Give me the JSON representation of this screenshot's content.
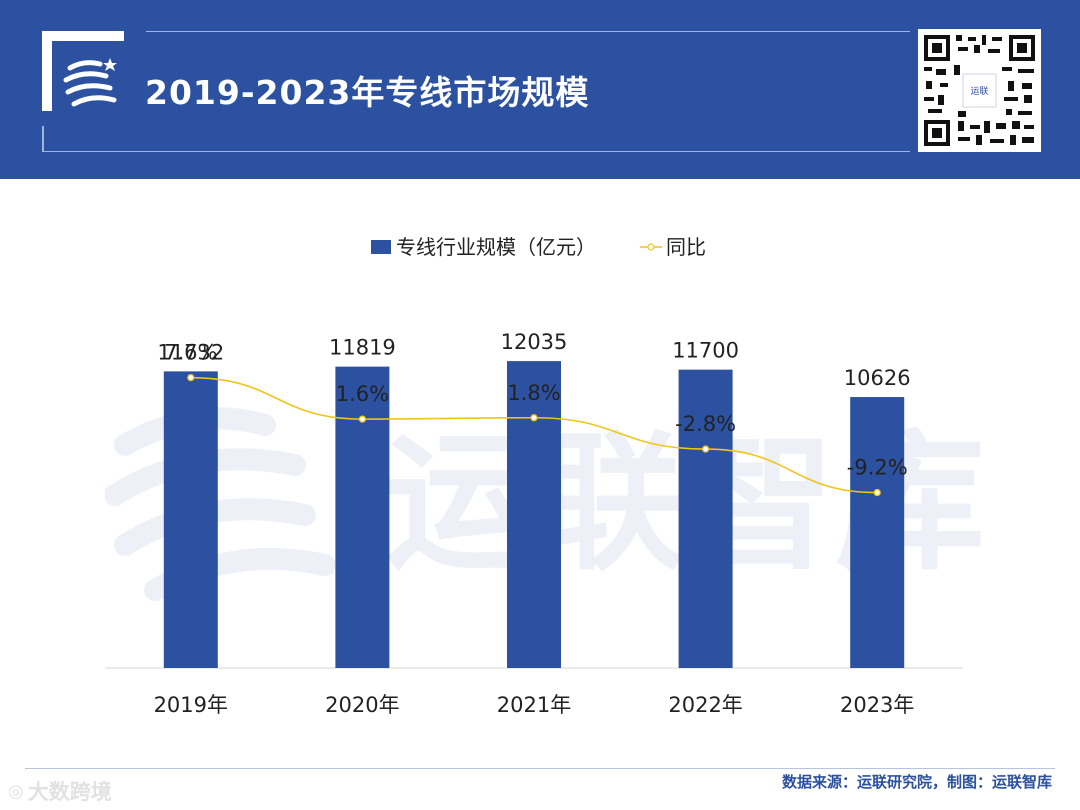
{
  "header": {
    "title": "2019-2023年专线市场规模",
    "qr_center_label": "运联"
  },
  "colors": {
    "header_bg": "#2c51a0",
    "bar": "#2c51a0",
    "line": "#f0c419",
    "text": "#222222"
  },
  "watermark": {
    "text": "运联智库"
  },
  "chart_data": {
    "type": "bar",
    "title": "",
    "categories": [
      "2019年",
      "2020年",
      "2021年",
      "2022年",
      "2023年"
    ],
    "series": [
      {
        "name": "专线行业规模（亿元）",
        "type": "bar",
        "values": [
          11632,
          11819,
          12035,
          11700,
          10626
        ],
        "labels": [
          "11632",
          "11819",
          "12035",
          "11700",
          "10626"
        ]
      },
      {
        "name": "同比",
        "type": "line",
        "values": [
          7.7,
          1.6,
          1.8,
          -2.8,
          -9.2
        ],
        "labels": [
          "7.7%",
          "1.6%",
          "1.8%",
          "-2.8%",
          "-9.2%"
        ]
      }
    ],
    "ylim": [
      0,
      16000
    ],
    "y2lim": [
      -35,
      25
    ],
    "legend_position": "top-center",
    "grid": false
  },
  "footer": {
    "source": "数据来源：运联研究院，制图：运联智库",
    "corner_watermark": "大数跨境"
  }
}
